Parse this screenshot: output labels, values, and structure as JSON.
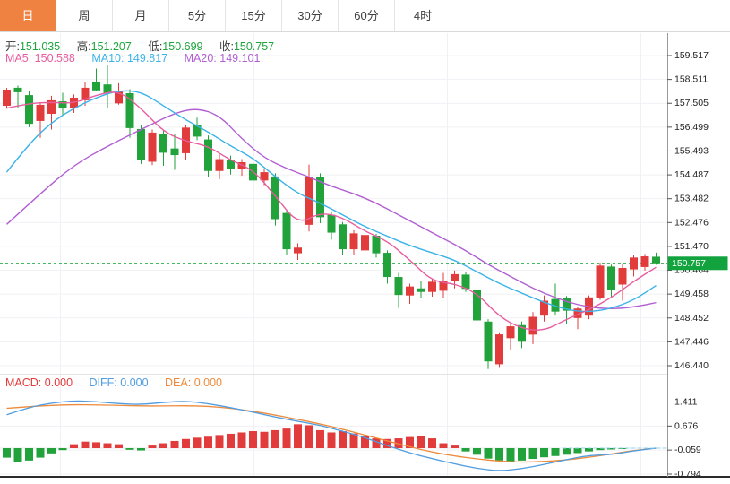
{
  "tabs": {
    "items": [
      {
        "id": "day",
        "label": "日",
        "active": true
      },
      {
        "id": "week",
        "label": "周",
        "active": false
      },
      {
        "id": "month",
        "label": "月",
        "active": false
      },
      {
        "id": "5min",
        "label": "5分",
        "active": false
      },
      {
        "id": "15min",
        "label": "15分",
        "active": false
      },
      {
        "id": "30min",
        "label": "30分",
        "active": false
      },
      {
        "id": "60min",
        "label": "60分",
        "active": false
      },
      {
        "id": "4hour",
        "label": "4时",
        "active": false
      }
    ]
  },
  "quote_bar": {
    "fields": [
      {
        "label": "开:",
        "value": "151.035"
      },
      {
        "label": "高:",
        "value": "151.207"
      },
      {
        "label": "低:",
        "value": "150.699"
      },
      {
        "label": "收:",
        "value": "150.757"
      }
    ]
  },
  "ma_bar": {
    "fields": [
      {
        "label": "MA5:",
        "value": "150.588"
      },
      {
        "label": "MA10:",
        "value": "149.817"
      },
      {
        "label": "MA20:",
        "value": "149.101"
      }
    ]
  },
  "macd_bar": {
    "fields": [
      {
        "label": "MACD:",
        "value": "0.000"
      },
      {
        "label": "DIFF:",
        "value": "0.000"
      },
      {
        "label": "DEA:",
        "value": "0.000"
      }
    ]
  },
  "price_axis": {
    "ticks": [
      "159.517",
      "158.511",
      "157.505",
      "156.499",
      "155.493",
      "154.487",
      "153.482",
      "152.476",
      "151.470",
      "150.464",
      "149.458",
      "148.452",
      "147.446",
      "146.440"
    ],
    "current_tag": "150.757"
  },
  "macd_axis": {
    "ticks": [
      "1.411",
      "0.676",
      "-0.059",
      "-0.794"
    ]
  },
  "colors": {
    "accent_tab": "#ef8240",
    "up": "#e23b3b",
    "down": "#21a23a",
    "ma5": "#e85d9e",
    "ma10": "#3bb3e8",
    "ma20": "#b15fd2",
    "diff": "#4f9ce0",
    "dea": "#ed8a3b",
    "price_line": "#2fae4a",
    "price_tag_bg": "#12a23e",
    "value_green": "#1ea43c",
    "grid": "#f1f1f5",
    "axis_text": "#222222"
  },
  "chart_data": [
    {
      "type": "candlestick",
      "title": "日K candlestick with MA overlays",
      "x_count": 59,
      "ylim": [
        146.0,
        159.9
      ],
      "y_ticks": [
        159.517,
        158.511,
        157.505,
        156.499,
        155.493,
        154.487,
        153.482,
        152.476,
        151.47,
        150.464,
        149.458,
        148.452,
        147.446,
        146.44
      ],
      "current_price": 150.757,
      "open": [
        157.4,
        158.16,
        157.85,
        156.76,
        157.06,
        157.59,
        157.32,
        157.63,
        158.42,
        158.3,
        157.5,
        157.93,
        156.42,
        155.04,
        156.2,
        155.6,
        155.4,
        156.6,
        155.98,
        154.65,
        155.12,
        154.72,
        154.95,
        154.25,
        154.42,
        152.88,
        151.18,
        152.38,
        154.4,
        152.8,
        152.4,
        151.35,
        151.3,
        151.92,
        151.2,
        150.18,
        149.4,
        149.7,
        149.55,
        149.6,
        150.02,
        150.28,
        149.65,
        148.3,
        146.5,
        147.6,
        148.15,
        147.75,
        148.55,
        149.25,
        149.3,
        148.45,
        148.55,
        149.3,
        150.62,
        149.86,
        150.5,
        150.6,
        151.035
      ],
      "high": [
        158.15,
        158.25,
        158.02,
        157.52,
        157.82,
        157.95,
        157.88,
        158.42,
        158.97,
        159.1,
        158.35,
        158.1,
        156.6,
        156.4,
        156.35,
        156.2,
        156.6,
        156.9,
        156.15,
        155.35,
        155.3,
        155.15,
        155.1,
        154.75,
        154.55,
        153.0,
        151.6,
        154.92,
        154.55,
        152.95,
        152.5,
        152.15,
        152.1,
        152.0,
        151.3,
        150.35,
        149.9,
        150.0,
        150.1,
        150.35,
        150.45,
        150.4,
        149.75,
        148.4,
        147.85,
        148.2,
        148.3,
        148.7,
        149.4,
        149.9,
        149.38,
        148.92,
        149.4,
        150.78,
        150.7,
        150.72,
        151.1,
        151.15,
        151.207
      ],
      "low": [
        157.28,
        157.3,
        156.5,
        156.05,
        156.4,
        157.02,
        157.1,
        157.4,
        158.02,
        157.3,
        157.45,
        156.05,
        154.95,
        154.9,
        154.87,
        154.7,
        155.1,
        155.95,
        154.4,
        154.3,
        154.5,
        154.45,
        153.98,
        154.05,
        152.35,
        151.1,
        150.9,
        152.1,
        152.45,
        151.75,
        151.1,
        151.1,
        151.05,
        151.0,
        149.9,
        148.88,
        149.05,
        149.3,
        149.35,
        149.3,
        149.7,
        149.55,
        148.2,
        146.3,
        146.35,
        147.1,
        147.18,
        147.35,
        148.3,
        148.55,
        148.18,
        147.98,
        148.4,
        149.22,
        149.35,
        149.18,
        150.2,
        150.45,
        150.699
      ],
      "close": [
        158.08,
        157.97,
        156.64,
        157.44,
        157.63,
        157.32,
        157.74,
        158.16,
        158.05,
        157.92,
        158.0,
        156.46,
        155.1,
        156.27,
        155.42,
        155.32,
        156.48,
        156.1,
        154.65,
        155.15,
        154.72,
        155.02,
        154.25,
        154.6,
        152.62,
        151.35,
        151.42,
        154.4,
        152.7,
        152.05,
        151.35,
        152.02,
        151.95,
        151.18,
        150.18,
        149.42,
        149.78,
        149.55,
        149.98,
        150.02,
        150.3,
        149.68,
        148.35,
        146.62,
        147.76,
        148.1,
        147.45,
        148.5,
        149.18,
        148.72,
        148.76,
        148.85,
        149.32,
        150.66,
        149.62,
        150.56,
        151.0,
        151.05,
        150.757
      ],
      "overlays": {
        "ma5": [
          [
            0,
            157.3
          ],
          [
            2,
            157.5
          ],
          [
            4,
            157.55
          ],
          [
            6,
            157.5
          ],
          [
            8,
            157.85
          ],
          [
            10,
            158.05
          ],
          [
            12,
            157.3
          ],
          [
            14,
            156.3
          ],
          [
            16,
            155.9
          ],
          [
            18,
            155.7
          ],
          [
            20,
            155.1
          ],
          [
            22,
            154.7
          ],
          [
            24,
            153.6
          ],
          [
            26,
            152.4
          ],
          [
            28,
            152.9
          ],
          [
            30,
            152.7
          ],
          [
            32,
            152.1
          ],
          [
            34,
            151.7
          ],
          [
            36,
            150.9
          ],
          [
            38,
            150.0
          ],
          [
            40,
            149.9
          ],
          [
            42,
            149.5
          ],
          [
            44,
            148.5
          ],
          [
            46,
            148.0
          ],
          [
            48,
            147.9
          ],
          [
            50,
            148.4
          ],
          [
            52,
            148.8
          ],
          [
            54,
            149.3
          ],
          [
            56,
            150.0
          ],
          [
            58,
            150.59
          ]
        ],
        "ma10": [
          [
            0,
            154.6
          ],
          [
            2,
            155.8
          ],
          [
            4,
            156.7
          ],
          [
            6,
            157.3
          ],
          [
            8,
            157.75
          ],
          [
            10,
            158.05
          ],
          [
            12,
            158.0
          ],
          [
            14,
            157.4
          ],
          [
            16,
            156.8
          ],
          [
            18,
            156.3
          ],
          [
            20,
            155.7
          ],
          [
            22,
            155.2
          ],
          [
            24,
            154.4
          ],
          [
            26,
            153.7
          ],
          [
            28,
            153.3
          ],
          [
            30,
            152.8
          ],
          [
            32,
            152.3
          ],
          [
            34,
            151.9
          ],
          [
            36,
            151.5
          ],
          [
            38,
            151.2
          ],
          [
            40,
            150.9
          ],
          [
            42,
            150.4
          ],
          [
            44,
            149.9
          ],
          [
            46,
            149.5
          ],
          [
            48,
            149.1
          ],
          [
            50,
            148.8
          ],
          [
            52,
            148.7
          ],
          [
            54,
            148.85
          ],
          [
            56,
            149.2
          ],
          [
            58,
            149.82
          ]
        ],
        "ma20": [
          [
            0,
            152.4
          ],
          [
            3,
            153.7
          ],
          [
            6,
            154.9
          ],
          [
            9,
            155.7
          ],
          [
            12,
            156.4
          ],
          [
            15,
            157.1
          ],
          [
            17,
            157.3
          ],
          [
            19,
            157.0
          ],
          [
            21,
            156.0
          ],
          [
            23,
            155.2
          ],
          [
            25,
            154.75
          ],
          [
            27,
            154.4
          ],
          [
            29,
            154.0
          ],
          [
            31,
            153.7
          ],
          [
            33,
            153.3
          ],
          [
            35,
            152.8
          ],
          [
            37,
            152.3
          ],
          [
            39,
            151.8
          ],
          [
            41,
            151.3
          ],
          [
            43,
            150.7
          ],
          [
            45,
            150.2
          ],
          [
            47,
            149.7
          ],
          [
            49,
            149.3
          ],
          [
            51,
            149.0
          ],
          [
            53,
            148.85
          ],
          [
            55,
            148.85
          ],
          [
            57,
            149.0
          ],
          [
            58,
            149.1
          ]
        ]
      }
    },
    {
      "type": "bar",
      "title": "MACD histogram with DIFF/DEA lines",
      "y_ticks": [
        1.411,
        0.676,
        -0.059,
        -0.794
      ],
      "values": [
        -0.29,
        -0.42,
        -0.38,
        -0.29,
        -0.16,
        -0.06,
        0.12,
        0.2,
        0.18,
        0.15,
        0.12,
        -0.05,
        -0.07,
        0.08,
        0.15,
        0.22,
        0.28,
        0.32,
        0.35,
        0.4,
        0.44,
        0.48,
        0.52,
        0.5,
        0.55,
        0.6,
        0.73,
        0.7,
        0.55,
        0.48,
        0.52,
        0.45,
        0.38,
        0.3,
        0.28,
        0.3,
        0.34,
        0.36,
        0.3,
        0.15,
        0.08,
        -0.1,
        -0.2,
        -0.32,
        -0.38,
        -0.42,
        -0.38,
        -0.33,
        -0.28,
        -0.24,
        -0.2,
        -0.15,
        -0.1,
        -0.06,
        -0.04,
        -0.02,
        0.0,
        0.0,
        0.0
      ],
      "diff_points": [
        [
          0,
          1.02
        ],
        [
          2,
          1.25
        ],
        [
          4,
          1.38
        ],
        [
          6,
          1.45
        ],
        [
          8,
          1.42
        ],
        [
          10,
          1.36
        ],
        [
          12,
          1.33
        ],
        [
          14,
          1.4
        ],
        [
          16,
          1.44
        ],
        [
          18,
          1.36
        ],
        [
          20,
          1.24
        ],
        [
          22,
          1.1
        ],
        [
          24,
          0.95
        ],
        [
          26,
          0.82
        ],
        [
          28,
          0.7
        ],
        [
          30,
          0.52
        ],
        [
          32,
          0.32
        ],
        [
          34,
          0.08
        ],
        [
          36,
          -0.15
        ],
        [
          38,
          -0.32
        ],
        [
          40,
          -0.48
        ],
        [
          42,
          -0.62
        ],
        [
          44,
          -0.7
        ],
        [
          46,
          -0.63
        ],
        [
          48,
          -0.5
        ],
        [
          50,
          -0.35
        ],
        [
          52,
          -0.22
        ],
        [
          54,
          -0.2
        ],
        [
          56,
          -0.08
        ],
        [
          58,
          0.0
        ]
      ],
      "dea_points": [
        [
          0,
          1.22
        ],
        [
          2,
          1.27
        ],
        [
          4,
          1.31
        ],
        [
          6,
          1.33
        ],
        [
          8,
          1.32
        ],
        [
          10,
          1.31
        ],
        [
          12,
          1.29
        ],
        [
          14,
          1.29
        ],
        [
          16,
          1.3
        ],
        [
          18,
          1.28
        ],
        [
          20,
          1.22
        ],
        [
          22,
          1.13
        ],
        [
          24,
          1.01
        ],
        [
          26,
          0.88
        ],
        [
          28,
          0.74
        ],
        [
          30,
          0.58
        ],
        [
          32,
          0.4
        ],
        [
          34,
          0.22
        ],
        [
          36,
          0.04
        ],
        [
          38,
          -0.12
        ],
        [
          40,
          -0.24
        ],
        [
          42,
          -0.33
        ],
        [
          44,
          -0.4
        ],
        [
          46,
          -0.43
        ],
        [
          48,
          -0.41
        ],
        [
          50,
          -0.36
        ],
        [
          52,
          -0.28
        ],
        [
          54,
          -0.18
        ],
        [
          56,
          -0.07
        ],
        [
          58,
          0.0
        ]
      ]
    }
  ]
}
